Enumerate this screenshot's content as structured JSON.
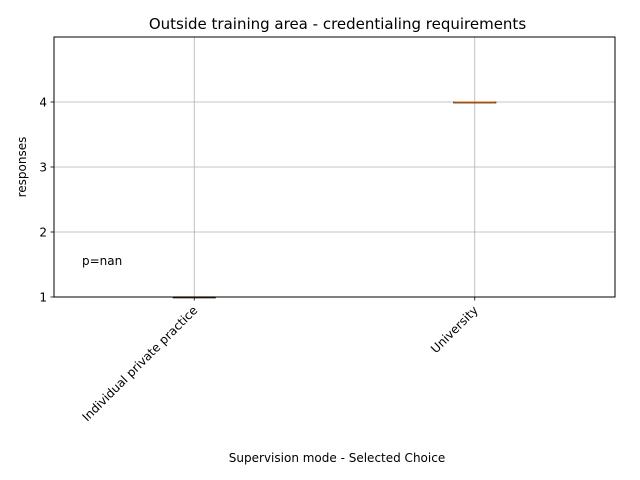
{
  "chart_data": {
    "type": "box",
    "title": "Outside training area - credentialing requirements",
    "xlabel": "Supervision mode - Selected Choice",
    "ylabel": "responses",
    "categories": [
      "Individual private practice",
      "University"
    ],
    "boxes": [
      {
        "category": "Individual private practice",
        "min": 1,
        "q1": 1,
        "median": 1,
        "q3": 1,
        "max": 1
      },
      {
        "category": "University",
        "min": 4,
        "q1": 4,
        "median": 4,
        "q3": 4,
        "max": 4
      }
    ],
    "ylim": [
      1,
      5
    ],
    "yticks": [
      "1",
      "2",
      "3",
      "4"
    ],
    "grid": true,
    "annotation": "p=nan",
    "colors": {
      "box": "#000000",
      "median": "#ff7f0e",
      "grid": "#b0b0b0",
      "axes": "#000000"
    }
  }
}
